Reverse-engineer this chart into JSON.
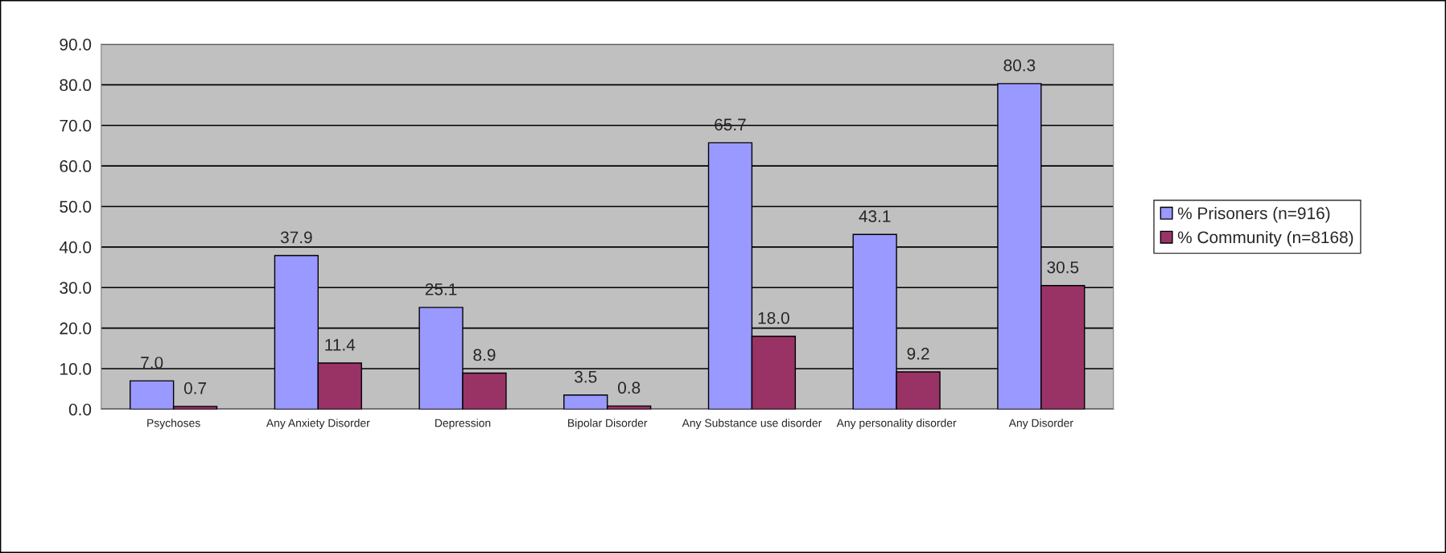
{
  "chart_data": {
    "type": "bar",
    "categories": [
      "Psychoses",
      "Any Anxiety Disorder",
      "Depression",
      "Bipolar Disorder",
      "Any Substance use disorder",
      "Any personality disorder",
      "Any Disorder"
    ],
    "series": [
      {
        "name": "% Prisoners (n=916)",
        "color": "#9999ff",
        "values": [
          7.0,
          37.9,
          25.1,
          3.5,
          65.7,
          43.1,
          80.3
        ],
        "value_labels": [
          "7.0",
          "37.9",
          "25.1",
          "3.5",
          "65.7",
          "43.1",
          "80.3"
        ]
      },
      {
        "name": "% Community (n=8168)",
        "color": "#993366",
        "values": [
          0.7,
          11.4,
          8.9,
          0.8,
          18.0,
          9.2,
          30.5
        ],
        "value_labels": [
          "0.7",
          "11.4",
          "8.9",
          "0.8",
          "18.0",
          "9.2",
          "30.5"
        ]
      }
    ],
    "ylim": [
      0,
      90
    ],
    "yticks": [
      {
        "value": 0,
        "label": "0.0"
      },
      {
        "value": 10,
        "label": "10.0"
      },
      {
        "value": 20,
        "label": "20.0"
      },
      {
        "value": 30,
        "label": "30.0"
      },
      {
        "value": 40,
        "label": "40.0"
      },
      {
        "value": 50,
        "label": "50.0"
      },
      {
        "value": 60,
        "label": "60.0"
      },
      {
        "value": 70,
        "label": "70.0"
      },
      {
        "value": 80,
        "label": "80.0"
      },
      {
        "value": 90,
        "label": "90.0"
      }
    ],
    "grid": "y",
    "legend": "right"
  }
}
